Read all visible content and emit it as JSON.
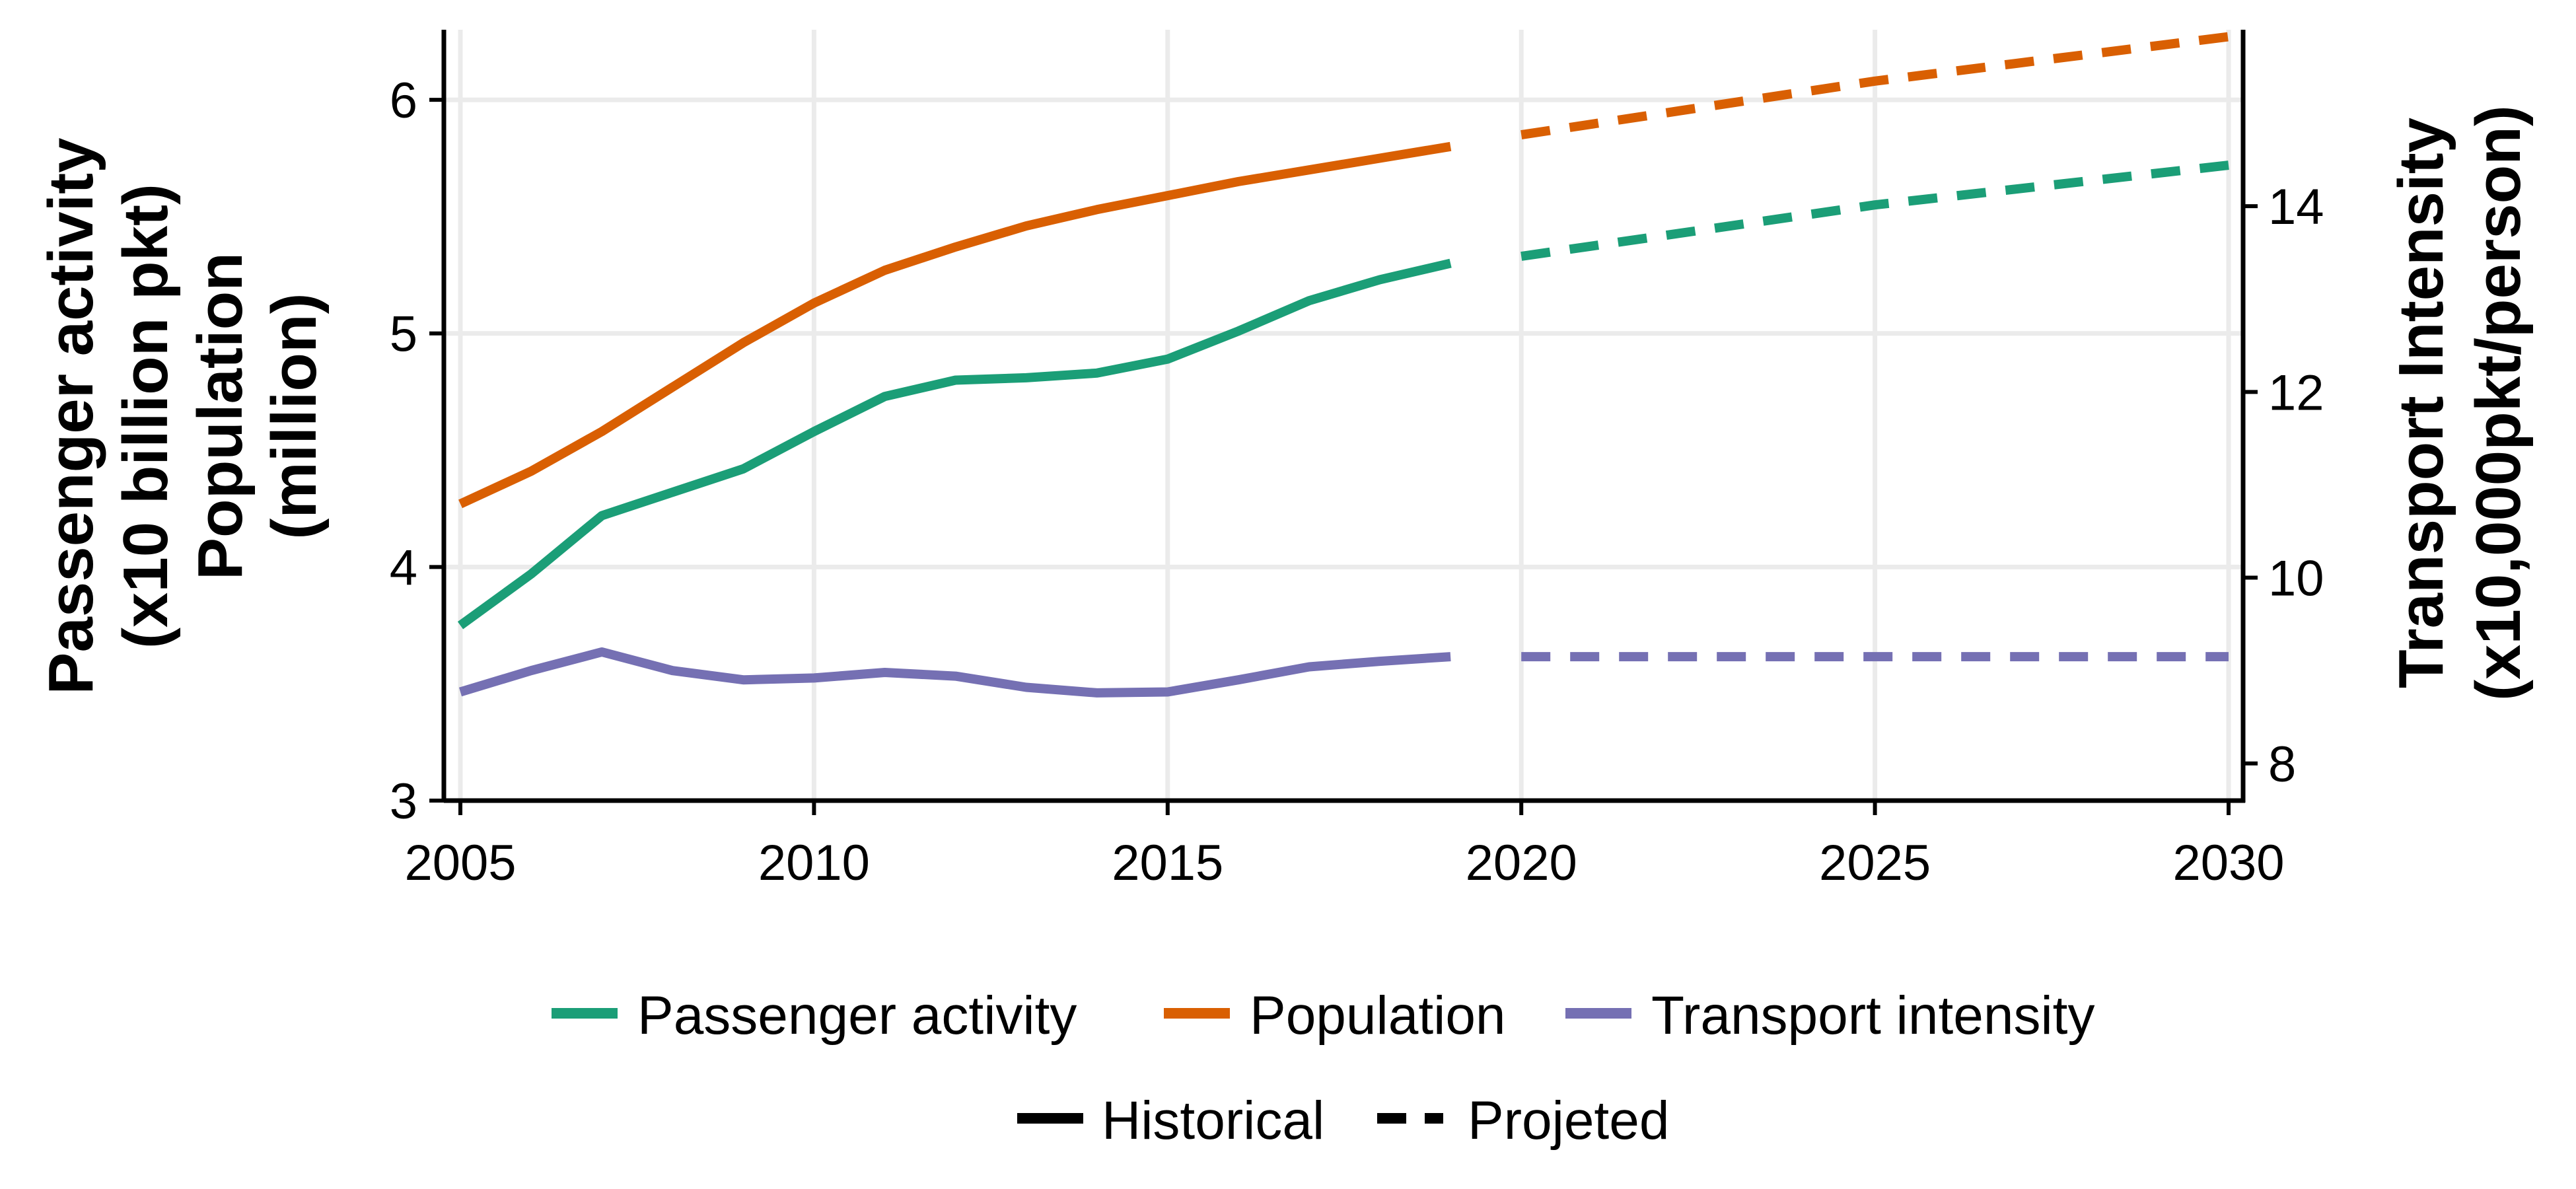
{
  "chart_data": {
    "type": "line",
    "x_axis": {
      "range": [
        2005,
        2030
      ],
      "ticks": [
        2005,
        2010,
        2015,
        2020,
        2025,
        2030
      ]
    },
    "y_left": {
      "title_lines": [
        "Passenger activity",
        "(x10 billion pkt)",
        "Population",
        "(million)"
      ],
      "range": [
        3,
        6.3
      ],
      "ticks": [
        3,
        4,
        5,
        6
      ]
    },
    "y_right": {
      "title_lines": [
        "Transport Intensity",
        "(x10,000pkt/person)"
      ],
      "range": [
        7.6,
        15.9
      ],
      "ticks": [
        8,
        10,
        12,
        14
      ]
    },
    "grid": true,
    "legend_position": "bottom",
    "series": [
      {
        "name": "Passenger activity",
        "color": "#1b9e77",
        "axis": "left",
        "historical": {
          "x": [
            2005,
            2006,
            2007,
            2008,
            2009,
            2010,
            2011,
            2012,
            2013,
            2014,
            2015,
            2016,
            2017,
            2018,
            2019
          ],
          "y": [
            3.75,
            3.97,
            4.22,
            4.32,
            4.42,
            4.58,
            4.73,
            4.8,
            4.81,
            4.83,
            4.89,
            5.01,
            5.14,
            5.23,
            5.3
          ]
        },
        "projected": {
          "x": [
            2020,
            2025,
            2030
          ],
          "y": [
            5.33,
            5.55,
            5.72
          ]
        }
      },
      {
        "name": "Population",
        "color": "#d95f02",
        "axis": "left",
        "historical": {
          "x": [
            2005,
            2006,
            2007,
            2008,
            2009,
            2010,
            2011,
            2012,
            2013,
            2014,
            2015,
            2016,
            2017,
            2018,
            2019
          ],
          "y": [
            4.27,
            4.41,
            4.58,
            4.77,
            4.96,
            5.13,
            5.27,
            5.37,
            5.46,
            5.53,
            5.59,
            5.65,
            5.7,
            5.75,
            5.8
          ]
        },
        "projected": {
          "x": [
            2020,
            2025,
            2030
          ],
          "y": [
            5.85,
            6.08,
            6.27
          ]
        }
      },
      {
        "name": "Transport intensity",
        "color": "#7570b3",
        "axis": "right",
        "historical": {
          "x": [
            2005,
            2006,
            2007,
            2008,
            2009,
            2010,
            2011,
            2012,
            2013,
            2014,
            2015,
            2016,
            2017,
            2018,
            2019
          ],
          "y": [
            8.77,
            9.0,
            9.2,
            9.0,
            8.9,
            8.92,
            8.98,
            8.94,
            8.82,
            8.76,
            8.77,
            8.9,
            9.04,
            9.1,
            9.15
          ]
        },
        "projected": {
          "x": [
            2020,
            2025,
            2030
          ],
          "y": [
            9.15,
            9.15,
            9.15
          ]
        }
      }
    ],
    "legend_linetypes": [
      {
        "name": "Historical",
        "style": "solid"
      },
      {
        "name": "Projeted",
        "style": "dashed"
      }
    ]
  }
}
